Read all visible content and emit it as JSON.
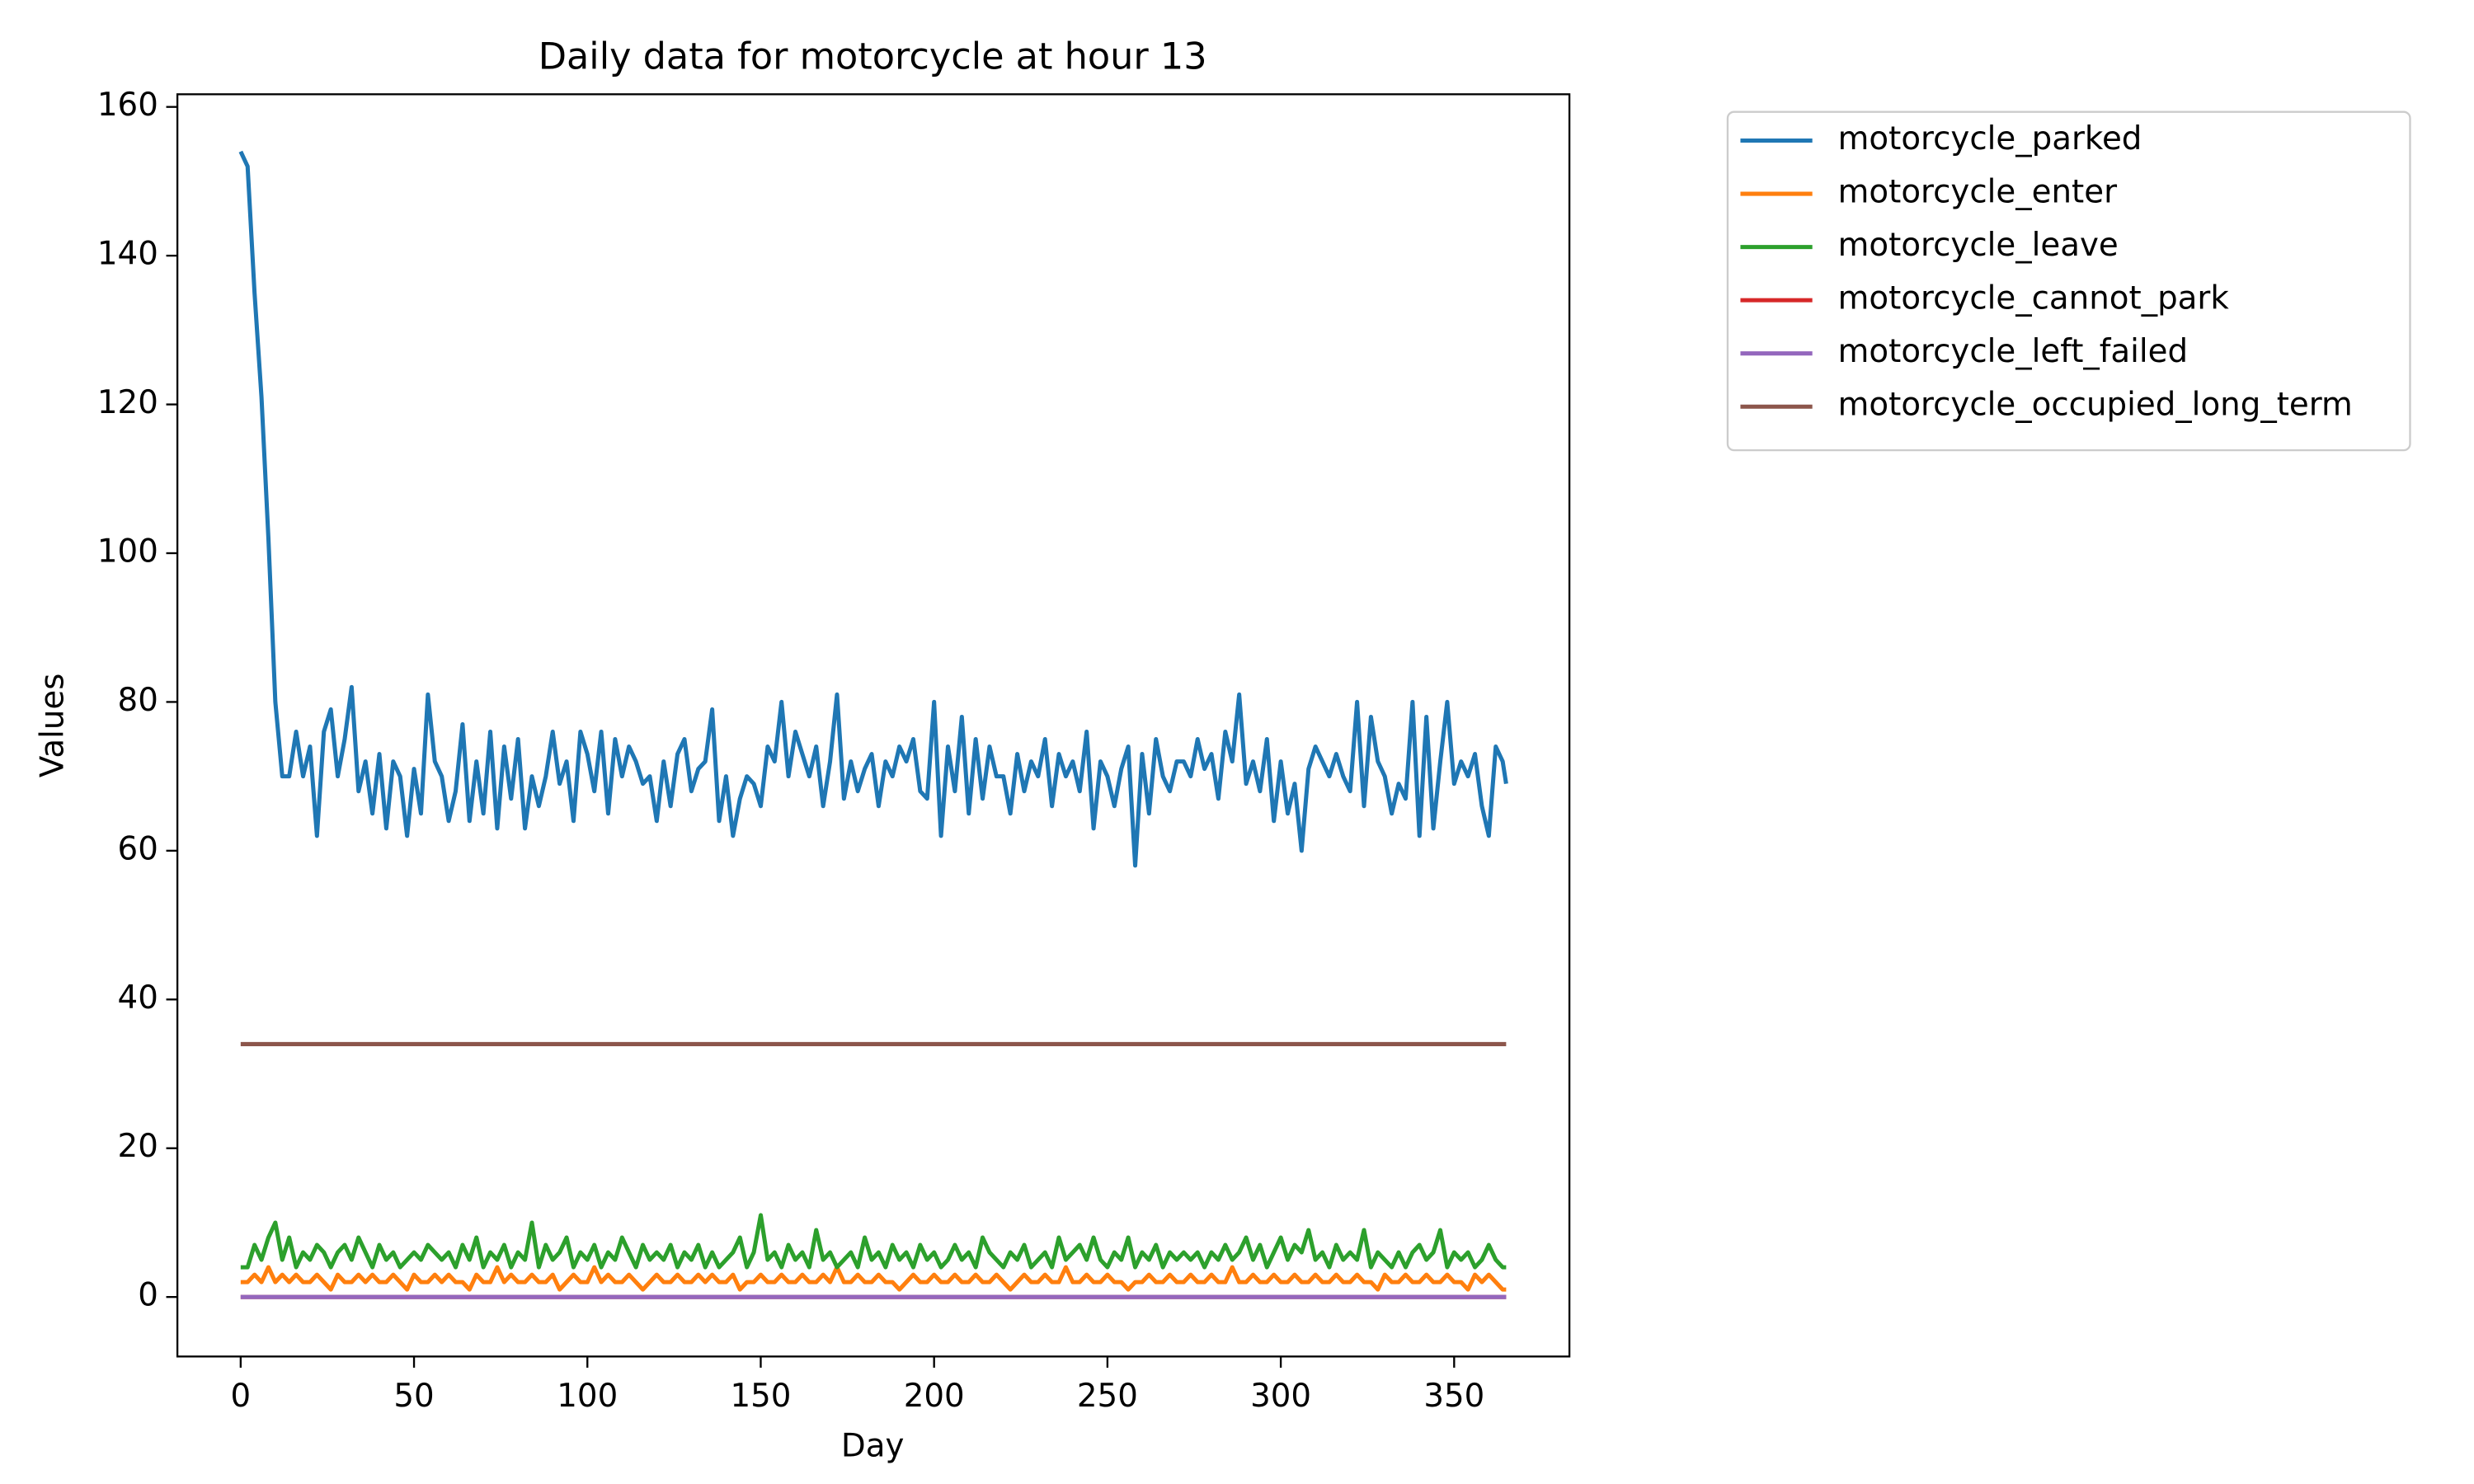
{
  "chart_data": {
    "type": "line",
    "title": "Daily data for motorcycle at hour 13",
    "xlabel": "Day",
    "ylabel": "Values",
    "xlim": [
      -18.25,
      383.25
    ],
    "ylim": [
      -8,
      161.7
    ],
    "xticks": [
      0,
      50,
      100,
      150,
      200,
      250,
      300,
      350
    ],
    "yticks": [
      0,
      20,
      40,
      60,
      80,
      100,
      120,
      140,
      160
    ],
    "legend": "outside-upper-right",
    "x": [
      0,
      2,
      4,
      6,
      8,
      10,
      12,
      14,
      16,
      18,
      20,
      22,
      24,
      26,
      28,
      30,
      32,
      34,
      36,
      38,
      40,
      42,
      44,
      46,
      48,
      50,
      52,
      54,
      56,
      58,
      60,
      62,
      64,
      66,
      68,
      70,
      72,
      74,
      76,
      78,
      80,
      82,
      84,
      86,
      88,
      90,
      92,
      94,
      96,
      98,
      100,
      102,
      104,
      106,
      108,
      110,
      112,
      114,
      116,
      118,
      120,
      122,
      124,
      126,
      128,
      130,
      132,
      134,
      136,
      138,
      140,
      142,
      144,
      146,
      148,
      150,
      152,
      154,
      156,
      158,
      160,
      162,
      164,
      166,
      168,
      170,
      172,
      174,
      176,
      178,
      180,
      182,
      184,
      186,
      188,
      190,
      192,
      194,
      196,
      198,
      200,
      202,
      204,
      206,
      208,
      210,
      212,
      214,
      216,
      218,
      220,
      222,
      224,
      226,
      228,
      230,
      232,
      234,
      236,
      238,
      240,
      242,
      244,
      246,
      248,
      250,
      252,
      254,
      256,
      258,
      260,
      262,
      264,
      266,
      268,
      270,
      272,
      274,
      276,
      278,
      280,
      282,
      284,
      286,
      288,
      290,
      292,
      294,
      296,
      298,
      300,
      302,
      304,
      306,
      308,
      310,
      312,
      314,
      316,
      318,
      320,
      322,
      324,
      326,
      328,
      330,
      332,
      334,
      336,
      338,
      340,
      342,
      344,
      346,
      348,
      350,
      352,
      354,
      356,
      358,
      360,
      362,
      364,
      365
    ],
    "series": [
      {
        "name": "motorcycle_parked",
        "color": "#1f77b4",
        "values": [
          154,
          152,
          135,
          121,
          102,
          80,
          70,
          70,
          76,
          70,
          74,
          62,
          76,
          79,
          70,
          75,
          82,
          68,
          72,
          65,
          73,
          63,
          72,
          70,
          62,
          71,
          65,
          81,
          72,
          70,
          64,
          68,
          77,
          64,
          72,
          65,
          76,
          63,
          74,
          67,
          75,
          63,
          70,
          66,
          70,
          76,
          69,
          72,
          64,
          76,
          73,
          68,
          76,
          65,
          75,
          70,
          74,
          72,
          69,
          70,
          64,
          72,
          66,
          73,
          75,
          68,
          71,
          72,
          79,
          64,
          70,
          62,
          67,
          70,
          69,
          66,
          74,
          72,
          80,
          70,
          76,
          73,
          70,
          74,
          66,
          72,
          81,
          67,
          72,
          68,
          71,
          73,
          66,
          72,
          70,
          74,
          72,
          75,
          68,
          67,
          80,
          62,
          74,
          68,
          78,
          65,
          75,
          67,
          74,
          70,
          70,
          65,
          73,
          68,
          72,
          70,
          75,
          66,
          73,
          70,
          72,
          68,
          76,
          63,
          72,
          70,
          66,
          71,
          74,
          58,
          73,
          65,
          75,
          70,
          68,
          72,
          72,
          70,
          75,
          71,
          73,
          67,
          76,
          72,
          81,
          69,
          72,
          68,
          75,
          64,
          72,
          65,
          69,
          60,
          71,
          74,
          72,
          70,
          73,
          70,
          68,
          80,
          66,
          78,
          72,
          70,
          65,
          69,
          67,
          80,
          62,
          78,
          63,
          72,
          80,
          69,
          72,
          70,
          73,
          66,
          62,
          74,
          72,
          69
        ]
      },
      {
        "name": "motorcycle_enter",
        "color": "#ff7f0e",
        "values": [
          2,
          2,
          3,
          2,
          4,
          2,
          3,
          2,
          3,
          2,
          2,
          3,
          2,
          1,
          3,
          2,
          2,
          3,
          2,
          3,
          2,
          2,
          3,
          2,
          1,
          3,
          2,
          2,
          3,
          2,
          3,
          2,
          2,
          1,
          3,
          2,
          2,
          4,
          2,
          3,
          2,
          2,
          3,
          2,
          2,
          3,
          1,
          2,
          3,
          2,
          2,
          4,
          2,
          3,
          2,
          2,
          3,
          2,
          1,
          2,
          3,
          2,
          2,
          3,
          2,
          2,
          3,
          2,
          3,
          2,
          2,
          3,
          1,
          2,
          2,
          3,
          2,
          2,
          3,
          2,
          2,
          3,
          2,
          2,
          3,
          2,
          4,
          2,
          2,
          3,
          2,
          2,
          3,
          2,
          2,
          1,
          2,
          3,
          2,
          2,
          3,
          2,
          2,
          3,
          2,
          2,
          3,
          2,
          2,
          3,
          2,
          1,
          2,
          3,
          2,
          2,
          3,
          2,
          2,
          4,
          2,
          2,
          3,
          2,
          2,
          3,
          2,
          2,
          1,
          2,
          2,
          3,
          2,
          2,
          3,
          2,
          2,
          3,
          2,
          2,
          3,
          2,
          2,
          4,
          2,
          2,
          3,
          2,
          2,
          3,
          2,
          2,
          3,
          2,
          2,
          3,
          2,
          2,
          3,
          2,
          2,
          3,
          2,
          2,
          1,
          3,
          2,
          2,
          3,
          2,
          2,
          3,
          2,
          2,
          3,
          2,
          2,
          1,
          3,
          2,
          3,
          2,
          1,
          1
        ]
      },
      {
        "name": "motorcycle_leave",
        "color": "#2ca02c",
        "values": [
          4,
          4,
          7,
          5,
          8,
          10,
          5,
          8,
          4,
          6,
          5,
          7,
          6,
          4,
          6,
          7,
          5,
          8,
          6,
          4,
          7,
          5,
          6,
          4,
          5,
          6,
          5,
          7,
          6,
          5,
          6,
          4,
          7,
          5,
          8,
          4,
          6,
          5,
          7,
          4,
          6,
          5,
          10,
          4,
          7,
          5,
          6,
          8,
          4,
          6,
          5,
          7,
          4,
          6,
          5,
          8,
          6,
          4,
          7,
          5,
          6,
          5,
          7,
          4,
          6,
          5,
          7,
          4,
          6,
          4,
          5,
          6,
          8,
          4,
          6,
          11,
          5,
          6,
          4,
          7,
          5,
          6,
          4,
          9,
          5,
          6,
          4,
          5,
          6,
          4,
          8,
          5,
          6,
          4,
          7,
          5,
          6,
          4,
          7,
          5,
          6,
          4,
          5,
          7,
          5,
          6,
          4,
          8,
          6,
          5,
          4,
          6,
          5,
          7,
          4,
          5,
          6,
          4,
          8,
          5,
          6,
          7,
          5,
          8,
          5,
          4,
          6,
          5,
          8,
          4,
          6,
          5,
          7,
          4,
          6,
          5,
          6,
          5,
          6,
          4,
          6,
          5,
          7,
          5,
          6,
          8,
          5,
          7,
          4,
          6,
          8,
          5,
          7,
          6,
          9,
          5,
          6,
          4,
          7,
          5,
          6,
          5,
          9,
          4,
          6,
          5,
          4,
          6,
          4,
          6,
          7,
          5,
          6,
          9,
          4,
          6,
          5,
          6,
          4,
          5,
          7,
          5,
          4,
          4
        ]
      },
      {
        "name": "motorcycle_cannot_park",
        "color": "#d62728",
        "values": [
          0,
          0,
          0,
          0,
          0,
          0,
          0,
          0,
          0,
          0,
          0,
          0,
          0,
          0,
          0,
          0,
          0,
          0,
          0,
          0,
          0,
          0,
          0,
          0,
          0,
          0,
          0,
          0,
          0,
          0,
          0,
          0,
          0,
          0,
          0,
          0,
          0,
          0,
          0,
          0,
          0,
          0,
          0,
          0,
          0,
          0,
          0,
          0,
          0,
          0,
          0,
          0,
          0,
          0,
          0,
          0,
          0,
          0,
          0,
          0,
          0,
          0,
          0,
          0,
          0,
          0,
          0,
          0,
          0,
          0,
          0,
          0,
          0,
          0,
          0,
          0,
          0,
          0,
          0,
          0,
          0,
          0,
          0,
          0,
          0,
          0,
          0,
          0,
          0,
          0,
          0,
          0,
          0,
          0,
          0,
          0,
          0,
          0,
          0,
          0,
          0,
          0,
          0,
          0,
          0,
          0,
          0,
          0,
          0,
          0,
          0,
          0,
          0,
          0,
          0,
          0,
          0,
          0,
          0,
          0,
          0,
          0,
          0,
          0,
          0,
          0,
          0,
          0,
          0,
          0,
          0,
          0,
          0,
          0,
          0,
          0,
          0,
          0,
          0,
          0,
          0,
          0,
          0,
          0,
          0,
          0,
          0,
          0,
          0,
          0,
          0,
          0,
          0,
          0,
          0,
          0,
          0,
          0,
          0,
          0,
          0,
          0,
          0,
          0,
          0,
          0,
          0,
          0,
          0,
          0,
          0,
          0,
          0,
          0,
          0,
          0,
          0,
          0,
          0,
          0,
          0,
          0,
          0,
          0
        ]
      },
      {
        "name": "motorcycle_left_failed",
        "color": "#9467bd",
        "values": [
          0,
          0,
          0,
          0,
          0,
          0,
          0,
          0,
          0,
          0,
          0,
          0,
          0,
          0,
          0,
          0,
          0,
          0,
          0,
          0,
          0,
          0,
          0,
          0,
          0,
          0,
          0,
          0,
          0,
          0,
          0,
          0,
          0,
          0,
          0,
          0,
          0,
          0,
          0,
          0,
          0,
          0,
          0,
          0,
          0,
          0,
          0,
          0,
          0,
          0,
          0,
          0,
          0,
          0,
          0,
          0,
          0,
          0,
          0,
          0,
          0,
          0,
          0,
          0,
          0,
          0,
          0,
          0,
          0,
          0,
          0,
          0,
          0,
          0,
          0,
          0,
          0,
          0,
          0,
          0,
          0,
          0,
          0,
          0,
          0,
          0,
          0,
          0,
          0,
          0,
          0,
          0,
          0,
          0,
          0,
          0,
          0,
          0,
          0,
          0,
          0,
          0,
          0,
          0,
          0,
          0,
          0,
          0,
          0,
          0,
          0,
          0,
          0,
          0,
          0,
          0,
          0,
          0,
          0,
          0,
          0,
          0,
          0,
          0,
          0,
          0,
          0,
          0,
          0,
          0,
          0,
          0,
          0,
          0,
          0,
          0,
          0,
          0,
          0,
          0,
          0,
          0,
          0,
          0,
          0,
          0,
          0,
          0,
          0,
          0,
          0,
          0,
          0,
          0,
          0,
          0,
          0,
          0,
          0,
          0,
          0,
          0,
          0,
          0,
          0,
          0,
          0,
          0,
          0,
          0,
          0,
          0,
          0,
          0,
          0,
          0,
          0,
          0,
          0,
          0,
          0,
          0,
          0,
          0
        ]
      },
      {
        "name": "motorcycle_occupied_long_term",
        "color": "#8c564b",
        "values": [
          34,
          34,
          34,
          34,
          34,
          34,
          34,
          34,
          34,
          34,
          34,
          34,
          34,
          34,
          34,
          34,
          34,
          34,
          34,
          34,
          34,
          34,
          34,
          34,
          34,
          34,
          34,
          34,
          34,
          34,
          34,
          34,
          34,
          34,
          34,
          34,
          34,
          34,
          34,
          34,
          34,
          34,
          34,
          34,
          34,
          34,
          34,
          34,
          34,
          34,
          34,
          34,
          34,
          34,
          34,
          34,
          34,
          34,
          34,
          34,
          34,
          34,
          34,
          34,
          34,
          34,
          34,
          34,
          34,
          34,
          34,
          34,
          34,
          34,
          34,
          34,
          34,
          34,
          34,
          34,
          34,
          34,
          34,
          34,
          34,
          34,
          34,
          34,
          34,
          34,
          34,
          34,
          34,
          34,
          34,
          34,
          34,
          34,
          34,
          34,
          34,
          34,
          34,
          34,
          34,
          34,
          34,
          34,
          34,
          34,
          34,
          34,
          34,
          34,
          34,
          34,
          34,
          34,
          34,
          34,
          34,
          34,
          34,
          34,
          34,
          34,
          34,
          34,
          34,
          34,
          34,
          34,
          34,
          34,
          34,
          34,
          34,
          34,
          34,
          34,
          34,
          34,
          34,
          34,
          34,
          34,
          34,
          34,
          34,
          34,
          34,
          34,
          34,
          34,
          34,
          34,
          34,
          34,
          34,
          34,
          34,
          34,
          34,
          34,
          34,
          34,
          34,
          34,
          34,
          34,
          34,
          34,
          34,
          34,
          34,
          34,
          34,
          34,
          34,
          34,
          34,
          34,
          34,
          34
        ]
      }
    ]
  }
}
